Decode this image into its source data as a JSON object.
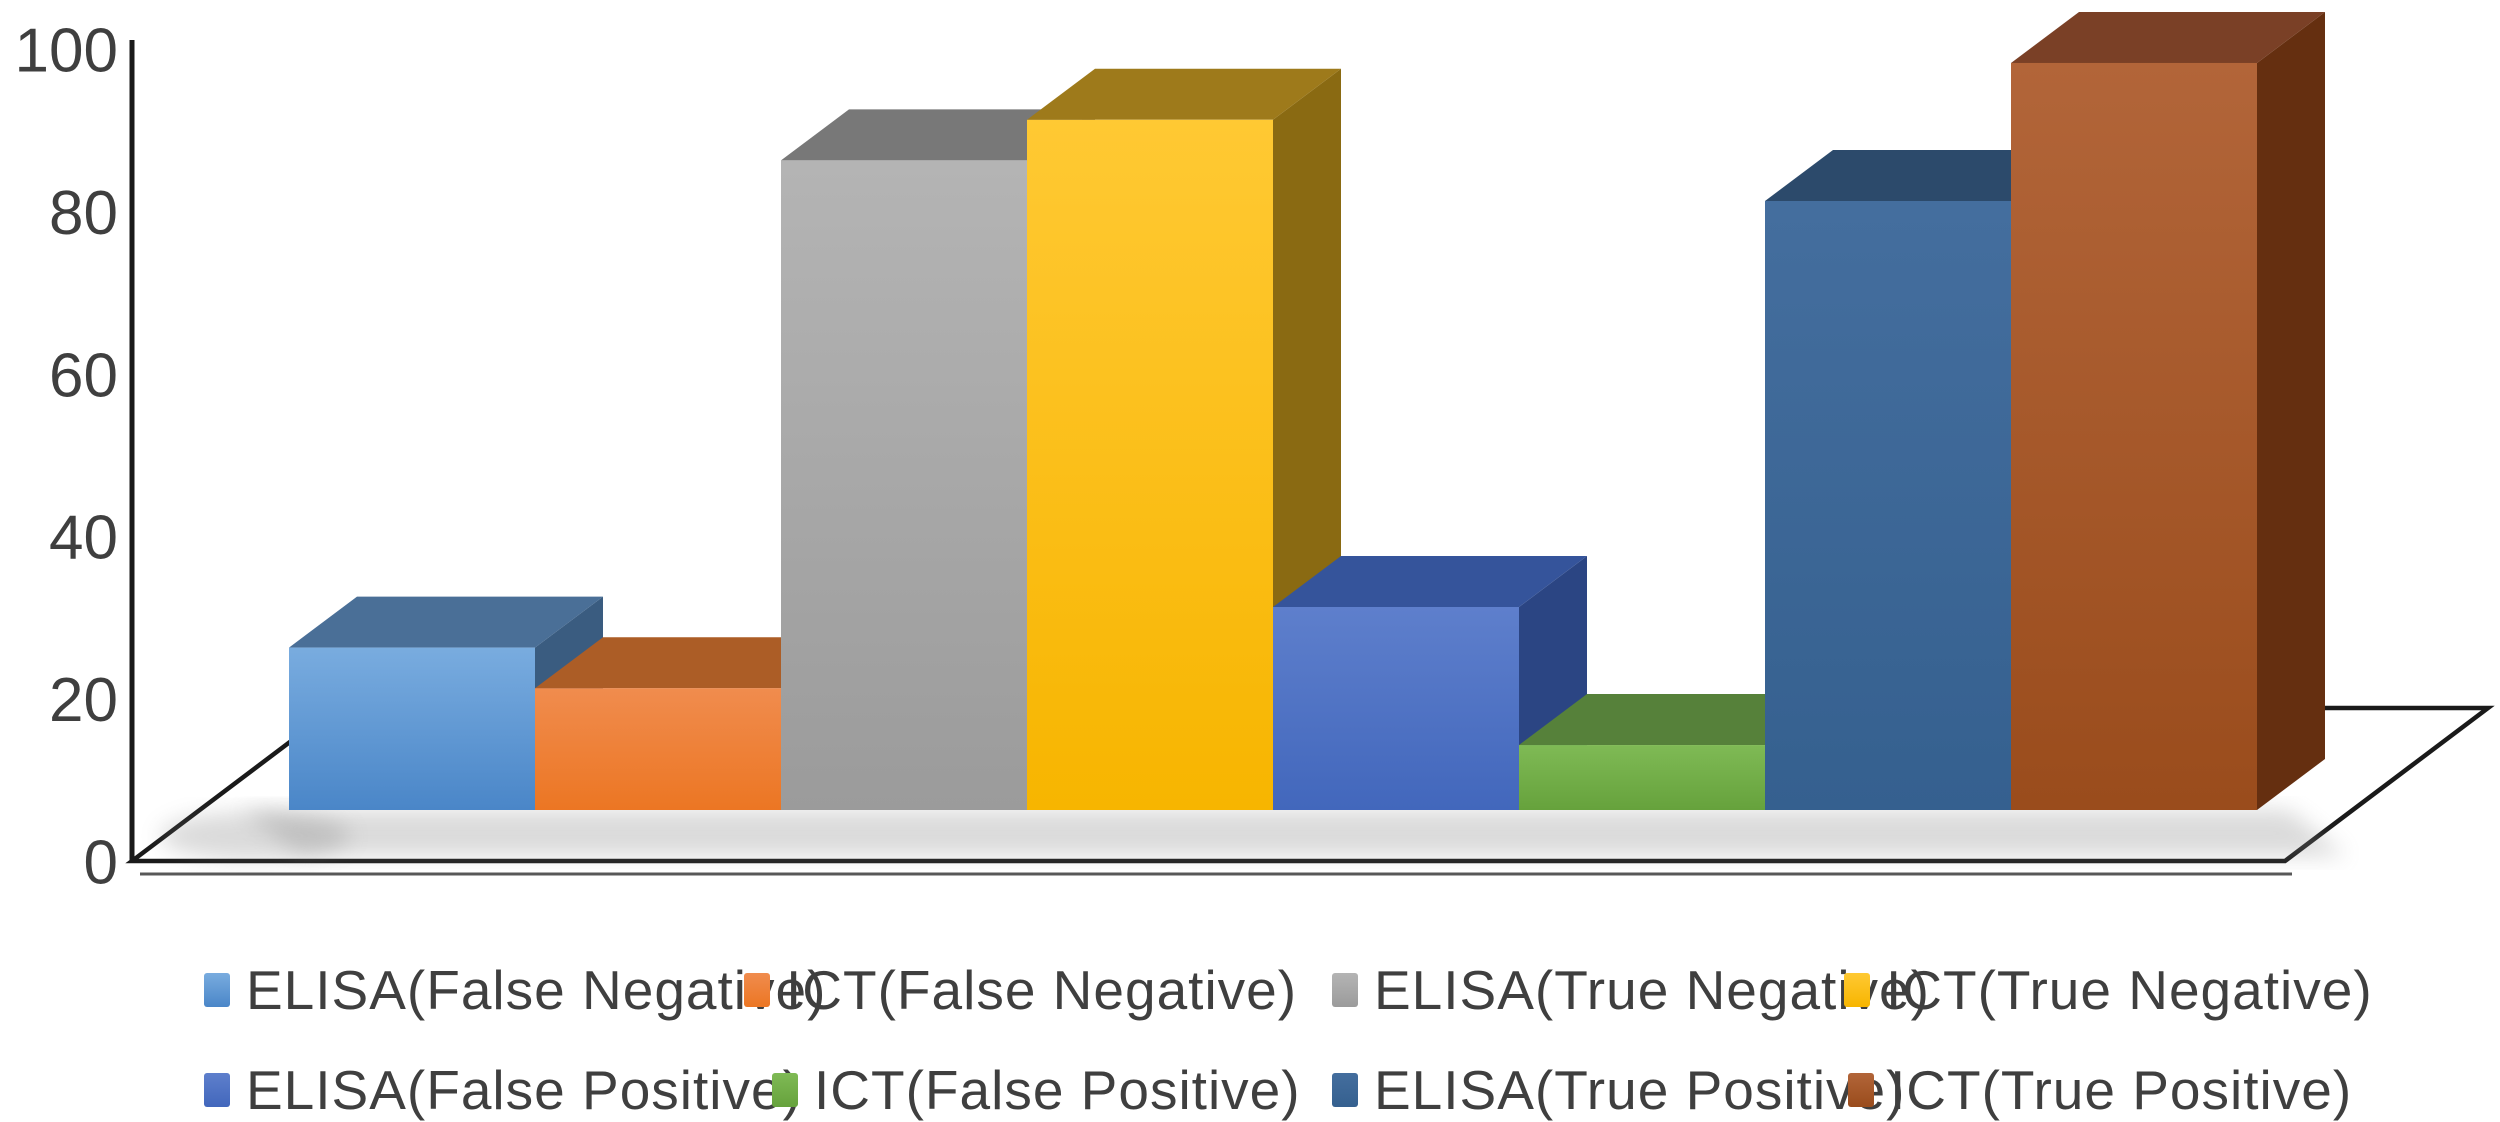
{
  "chart_data": {
    "type": "bar",
    "style": "3d-clustered-column",
    "title": "",
    "xlabel": "",
    "ylabel": "",
    "ylim": [
      0,
      100
    ],
    "y_ticks": [
      "0",
      "20",
      "40",
      "60",
      "80",
      "100"
    ],
    "y_tick_values": [
      0,
      20,
      40,
      60,
      80,
      100
    ],
    "grid": false,
    "legend_position": "bottom",
    "background_color": "#ffffff",
    "axis_color": "#1a1a1a",
    "tick_label_color": "#3f3f3f",
    "legend_text_color": "#3f3f3f",
    "series": [
      {
        "name": "ELISA(False Negative)",
        "value": 20,
        "swatch": "#5B9BD5",
        "front_light": "#79ACDF",
        "front_dark": "#4A86C8",
        "top": "#4A6F97",
        "side": "#3A5C80"
      },
      {
        "name": "ICT(False Negative)",
        "value": 15,
        "swatch": "#ED7D31",
        "front_light": "#F08C4E",
        "front_dark": "#EC7623",
        "top": "#AC5D26",
        "side": "#96501F"
      },
      {
        "name": "ELISA(True Negative)",
        "value": 80,
        "swatch": "#A5A5A5",
        "front_light": "#B4B4B4",
        "front_dark": "#9B9B9B",
        "top": "#787878",
        "side": "#696969"
      },
      {
        "name": "ICT(True Negative)",
        "value": 85,
        "swatch": "#FFC000",
        "front_light": "#FFC933",
        "front_dark": "#F7B500",
        "top": "#9E7A1B",
        "side": "#8A6A12"
      },
      {
        "name": "ELISA(False Positive)",
        "value": 25,
        "swatch": "#4472C4",
        "front_light": "#5E7FCC",
        "front_dark": "#4267BC",
        "top": "#35549B",
        "side": "#2B4583"
      },
      {
        "name": "ICT(False Positive)",
        "value": 8,
        "swatch": "#70AD47",
        "front_light": "#7FBA55",
        "front_dark": "#66A23C",
        "top": "#56813A",
        "side": "#48702E"
      },
      {
        "name": "ELISA(True Positive)",
        "value": 75,
        "swatch": "#2E6093",
        "front_light": "#446E9E",
        "front_dark": "#35608F",
        "top": "#2C4A6B",
        "side": "#223F5E"
      },
      {
        "name": "ICT(True Positive)",
        "value": 92,
        "swatch": "#A04E1C",
        "front_light": "#B26539",
        "front_dark": "#9A4C1C",
        "top": "#7A4026",
        "side": "#652F10"
      }
    ],
    "legend_rows": [
      [
        0,
        1,
        2,
        3
      ],
      [
        4,
        5,
        6,
        7
      ]
    ]
  }
}
